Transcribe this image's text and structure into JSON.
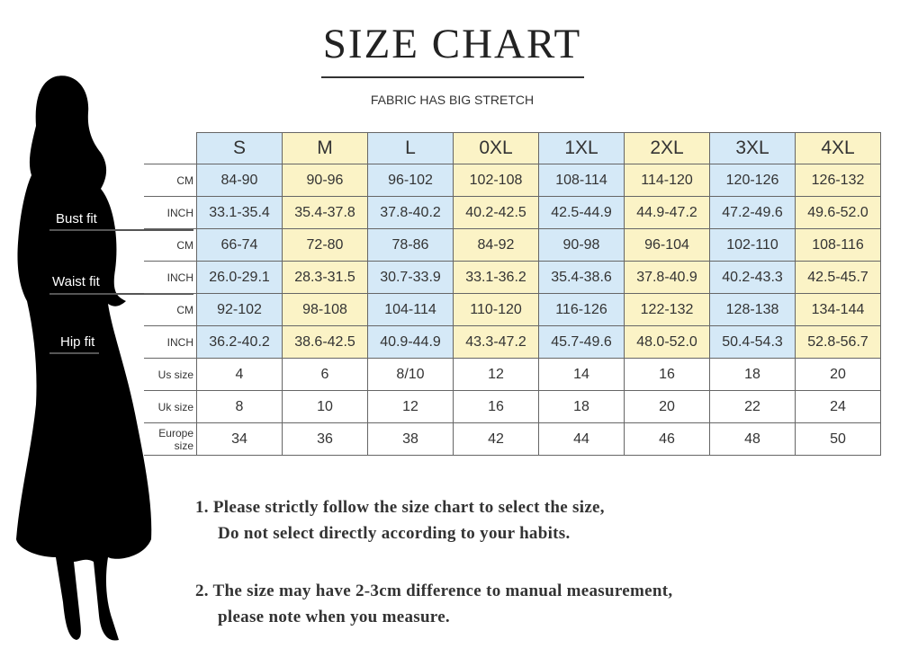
{
  "title": "SIZE CHART",
  "subtitle": "FABRIC HAS BIG STRETCH",
  "colors": {
    "blue": "#d5e9f7",
    "yellow": "#fbf3c6"
  },
  "fit_labels": [
    "Bust fit",
    "Waist fit",
    "Hip fit"
  ],
  "sizes": [
    "S",
    "M",
    "L",
    "0XL",
    "1XL",
    "2XL",
    "3XL",
    "4XL"
  ],
  "rows": [
    {
      "label": "CM",
      "values": [
        "84-90",
        "90-96",
        "96-102",
        "102-108",
        "108-114",
        "114-120",
        "120-126",
        "126-132"
      ]
    },
    {
      "label": "INCH",
      "values": [
        "33.1-35.4",
        "35.4-37.8",
        "37.8-40.2",
        "40.2-42.5",
        "42.5-44.9",
        "44.9-47.2",
        "47.2-49.6",
        "49.6-52.0"
      ]
    },
    {
      "label": "CM",
      "values": [
        "66-74",
        "72-80",
        "78-86",
        "84-92",
        "90-98",
        "96-104",
        "102-110",
        "108-116"
      ]
    },
    {
      "label": "INCH",
      "values": [
        "26.0-29.1",
        "28.3-31.5",
        "30.7-33.9",
        "33.1-36.2",
        "35.4-38.6",
        "37.8-40.9",
        "40.2-43.3",
        "42.5-45.7"
      ]
    },
    {
      "label": "CM",
      "values": [
        "92-102",
        "98-108",
        "104-114",
        "110-120",
        "116-126",
        "122-132",
        "128-138",
        "134-144"
      ]
    },
    {
      "label": "INCH",
      "values": [
        "36.2-40.2",
        "38.6-42.5",
        "40.9-44.9",
        "43.3-47.2",
        "45.7-49.6",
        "48.0-52.0",
        "50.4-54.3",
        "52.8-56.7"
      ]
    },
    {
      "label": "Us size",
      "values": [
        "4",
        "6",
        "8/10",
        "12",
        "14",
        "16",
        "18",
        "20"
      ]
    },
    {
      "label": "Uk size",
      "values": [
        "8",
        "10",
        "12",
        "16",
        "18",
        "20",
        "22",
        "24"
      ]
    },
    {
      "label": "Europe size",
      "values": [
        "34",
        "36",
        "38",
        "42",
        "44",
        "46",
        "48",
        "50"
      ]
    }
  ],
  "notes": [
    {
      "line1": "1.  Please strictly follow the size chart to select the size,",
      "line2": "Do not select directly according to your habits."
    },
    {
      "line1": "2.  The size may have 2-3cm difference  to manual measurement,",
      "line2": "please note when you measure."
    }
  ]
}
